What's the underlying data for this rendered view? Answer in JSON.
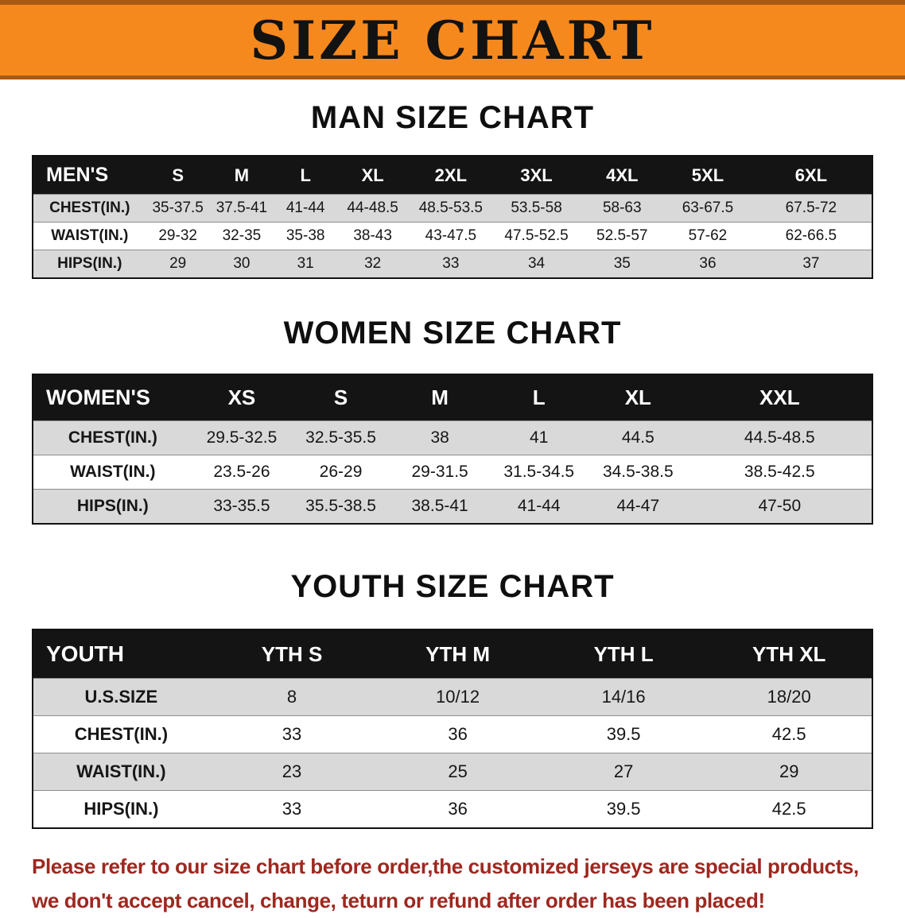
{
  "banner": {
    "title": "SIZE CHART"
  },
  "sections": [
    {
      "heading": "MAN SIZE CHART",
      "table": {
        "header": [
          "MEN'S",
          "S",
          "M",
          "L",
          "XL",
          "2XL",
          "3XL",
          "4XL",
          "5XL",
          "6XL"
        ],
        "rows": [
          [
            "CHEST(IN.)",
            "35-37.5",
            "37.5-41",
            "41-44",
            "44-48.5",
            "48.5-53.5",
            "53.5-58",
            "58-63",
            "63-67.5",
            "67.5-72"
          ],
          [
            "WAIST(IN.)",
            "29-32",
            "32-35",
            "35-38",
            "38-43",
            "43-47.5",
            "47.5-52.5",
            "52.5-57",
            "57-62",
            "62-66.5"
          ],
          [
            "HIPS(IN.)",
            "29",
            "30",
            "31",
            "32",
            "33",
            "34",
            "35",
            "36",
            "37"
          ]
        ]
      }
    },
    {
      "heading": "WOMEN SIZE CHART",
      "table": {
        "header": [
          "WOMEN'S",
          "XS",
          "S",
          "M",
          "L",
          "XL",
          "XXL"
        ],
        "rows": [
          [
            "CHEST(IN.)",
            "29.5-32.5",
            "32.5-35.5",
            "38",
            "41",
            "44.5",
            "44.5-48.5"
          ],
          [
            "WAIST(IN.)",
            "23.5-26",
            "26-29",
            "29-31.5",
            "31.5-34.5",
            "34.5-38.5",
            "38.5-42.5"
          ],
          [
            "HIPS(IN.)",
            "33-35.5",
            "35.5-38.5",
            "38.5-41",
            "41-44",
            "44-47",
            "47-50"
          ]
        ]
      }
    },
    {
      "heading": "YOUTH SIZE CHART",
      "table": {
        "header": [
          "YOUTH",
          "YTH S",
          "YTH M",
          "YTH L",
          "YTH XL"
        ],
        "rows": [
          [
            "U.S.SIZE",
            "8",
            "10/12",
            "14/16",
            "18/20"
          ],
          [
            "CHEST(IN.)",
            "33",
            "36",
            "39.5",
            "42.5"
          ],
          [
            "WAIST(IN.)",
            "23",
            "25",
            "27",
            "29"
          ],
          [
            "HIPS(IN.)",
            "33",
            "36",
            "39.5",
            "42.5"
          ]
        ]
      }
    }
  ],
  "footer": {
    "line1": "Please refer to our size chart before order,the customized jerseys are special products,",
    "line2": "we don't accept cancel, change, teturn or refund after order has been placed!"
  },
  "colors": {
    "banner_orange": "#f6891e",
    "banner_edge": "#a85a12",
    "table_header_black": "#141414",
    "row_gray": "#d9d9d9",
    "row_white": "#ffffff",
    "footer_red": "#9e2820"
  }
}
